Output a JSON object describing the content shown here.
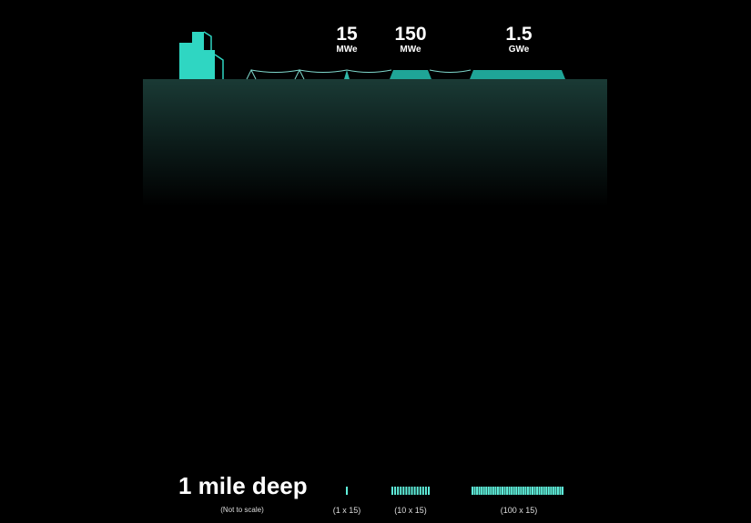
{
  "plants": [
    {
      "value": "15",
      "unit": "MWe",
      "config": "(1 x 15)",
      "wells": 1
    },
    {
      "value": "150",
      "unit": "MWe",
      "config": "(10 x 15)",
      "wells": 10
    },
    {
      "value": "1.5",
      "unit": "GWe",
      "config": "(100 x 15)",
      "wells": 100
    }
  ],
  "depth_label": "1 mile deep",
  "scale_note": "(Not to scale)",
  "colors": {
    "accent": "#2fd6c2",
    "ground": "#14302c",
    "background": "#000000"
  },
  "icons": [
    "city-buildings-icon",
    "power-line-pylon-icon"
  ]
}
